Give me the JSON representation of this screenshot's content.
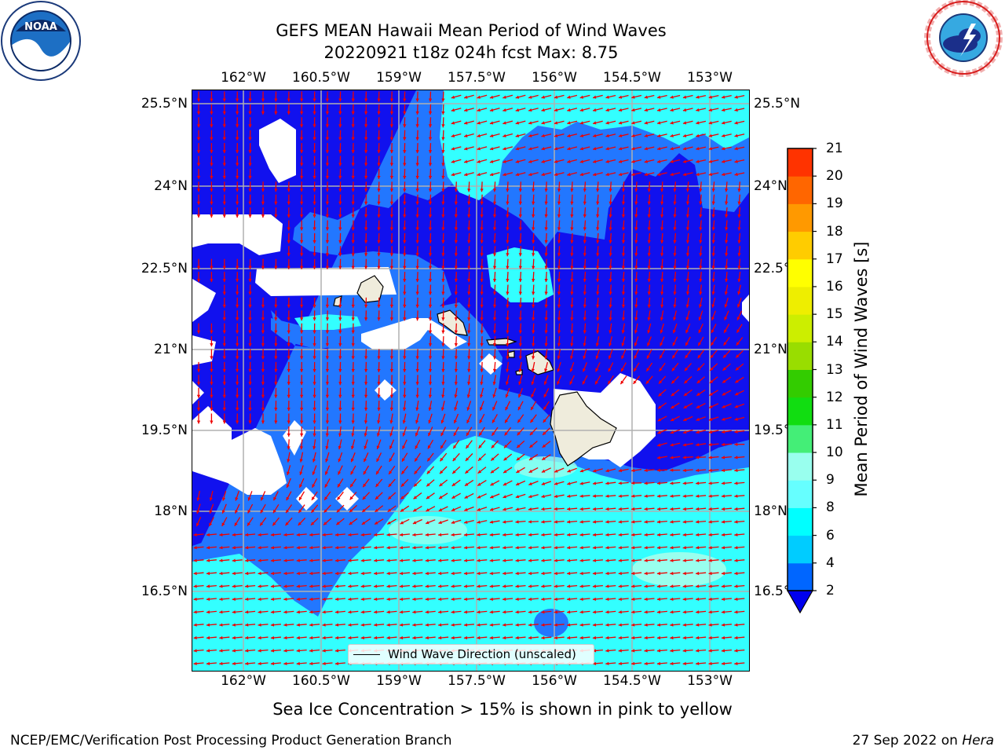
{
  "title": {
    "line1": "GEFS MEAN Hawaii Mean Period of Wind Waves",
    "line2": "20220921 t18z 024h fcst   Max: 8.75"
  },
  "longitude_labels": [
    "162°W",
    "160.5°W",
    "159°W",
    "157.5°W",
    "156°W",
    "154.5°W",
    "153°W"
  ],
  "latitude_labels": [
    "25.5°N",
    "24°N",
    "22.5°N",
    "21°N",
    "19.5°N",
    "18°N",
    "16.5°N"
  ],
  "legend": {
    "label": "Wind Wave Direction (unscaled)"
  },
  "colorbar": {
    "label": "Mean Period of Wind Waves [s]",
    "ticks": [
      "2",
      "4",
      "6",
      "8",
      "9",
      "10",
      "11",
      "12",
      "13",
      "14",
      "15",
      "16",
      "17",
      "18",
      "19",
      "20",
      "21"
    ],
    "colors": [
      "#0066ff",
      "#00ccff",
      "#00ffff",
      "#66ffff",
      "#99ffee",
      "#44ee77",
      "#11dd11",
      "#33cc00",
      "#99dd00",
      "#ccee00",
      "#eeee00",
      "#ffff00",
      "#ffcc00",
      "#ff9900",
      "#ff6600",
      "#ff3300"
    ],
    "under_color": "#0000ee"
  },
  "map_colors": {
    "deep_blue": "#1111ee",
    "mid_blue": "#2277ff",
    "cyan": "#33ffff",
    "land": "#efecdc",
    "arrow": "#ee0000",
    "grid": "#b0b0b0"
  },
  "note": "Sea Ice Concentration > 15% is shown in pink to yellow",
  "footer": {
    "left": "NCEP/EMC/Verification Post Processing Product Generation Branch",
    "date": "27 Sep 2022 on ",
    "host": "Hera"
  },
  "logos": {
    "left": "NOAA",
    "left_ring": "NATIONAL OCEANIC AND ATMOSPHERIC ADMINISTRATION · U.S. DEPARTMENT OF COMMERCE",
    "right_ring": "NATIONAL WEATHER SERVICE"
  }
}
